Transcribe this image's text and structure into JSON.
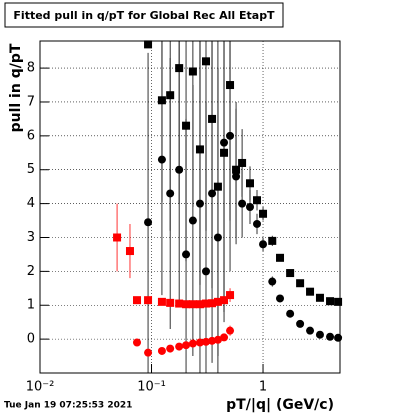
{
  "chart_data": {
    "type": "scatter",
    "title": "Fitted pull in q/pT for Global Rec All EtapT",
    "x_label": "pT/|q| (GeV/c)",
    "y_label": "pull in q/pT",
    "footer": "Tue Jan 19 07:25:53 2021",
    "log_x": true,
    "grid": true,
    "xlim": [
      0.01,
      4.9
    ],
    "ylim": [
      -1,
      8.8
    ],
    "xticks": [
      {
        "value": 0.01,
        "label": "10⁻²"
      },
      {
        "value": 0.1,
        "label": "10⁻¹"
      },
      1
    ],
    "yticks": [
      0,
      1,
      2,
      3,
      4,
      5,
      6,
      7,
      8
    ],
    "series": [
      {
        "color": "#000000",
        "marker": "square",
        "x": [
          0.0931,
          0.124,
          0.147,
          0.177,
          0.204,
          0.235,
          0.272,
          0.308,
          0.349,
          0.394,
          0.447,
          0.506,
          0.573,
          0.649,
          0.764,
          0.883,
          1.0,
          1.21,
          1.42,
          1.75,
          2.15,
          2.64,
          3.24,
          3.99,
          4.71
        ],
        "values": [
          8.7,
          7.05,
          7.2,
          8.0,
          6.3,
          7.9,
          5.6,
          8.2,
          6.5,
          4.5,
          5.5,
          7.5,
          5.0,
          5.2,
          4.6,
          4.1,
          3.7,
          2.9,
          2.4,
          1.95,
          1.65,
          1.4,
          1.22,
          1.12,
          1.1
        ],
        "errors": [
          0,
          3,
          4,
          4,
          4,
          4,
          4,
          5,
          5,
          5,
          5,
          4,
          2,
          1,
          0.5,
          0.3,
          0.2,
          0.15,
          0.1,
          0.08,
          0.06,
          0.05,
          0.05,
          0.05,
          0.05
        ]
      },
      {
        "color": "#000000",
        "marker": "circle",
        "x": [
          0.0931,
          0.124,
          0.147,
          0.177,
          0.204,
          0.235,
          0.272,
          0.308,
          0.349,
          0.394,
          0.447,
          0.506,
          0.573,
          0.649,
          0.764,
          0.883,
          1.0,
          1.21,
          1.42,
          1.75,
          2.15,
          2.64,
          3.24,
          3.99,
          4.71
        ],
        "values": [
          3.45,
          5.3,
          4.3,
          5.0,
          2.5,
          3.5,
          4.0,
          2.0,
          4.3,
          3.0,
          5.8,
          6.0,
          4.8,
          4.0,
          3.9,
          3.4,
          2.8,
          1.7,
          1.2,
          0.75,
          0.45,
          0.25,
          0.13,
          0.07,
          0.04
        ],
        "errors": [
          5,
          4,
          4,
          4,
          4,
          4,
          5,
          5,
          5,
          5,
          5,
          4,
          2,
          1,
          0.5,
          0.3,
          0.2,
          0.15,
          0.1,
          0.08,
          0.06,
          0.05,
          0.05,
          0.05,
          0.05
        ]
      },
      {
        "color": "#ff0000",
        "marker": "square",
        "x": [
          0.0491,
          0.0641,
          0.0741,
          0.0931,
          0.124,
          0.147,
          0.177,
          0.204,
          0.235,
          0.272,
          0.308,
          0.349,
          0.394,
          0.447,
          0.506
        ],
        "values": [
          3.0,
          2.6,
          1.15,
          1.15,
          1.1,
          1.07,
          1.05,
          1.03,
          1.03,
          1.03,
          1.05,
          1.06,
          1.1,
          1.15,
          1.3
        ],
        "errors": [
          1,
          0.8,
          0.1,
          0.1,
          0.08,
          0.08,
          0.08,
          0.08,
          0.08,
          0.1,
          0.1,
          0.1,
          0.1,
          0.1,
          0.2
        ]
      },
      {
        "color": "#ff0000",
        "marker": "circle",
        "x": [
          0.0741,
          0.0931,
          0.124,
          0.147,
          0.177,
          0.204,
          0.235,
          0.272,
          0.308,
          0.349,
          0.394,
          0.447,
          0.506
        ],
        "values": [
          -0.1,
          -0.4,
          -0.35,
          -0.28,
          -0.22,
          -0.18,
          -0.13,
          -0.1,
          -0.08,
          -0.05,
          -0.02,
          0.05,
          0.25
        ],
        "errors": [
          0.08,
          0.05,
          0.05,
          0.05,
          0.05,
          0.05,
          0.05,
          0.05,
          0.05,
          0.05,
          0.08,
          0.1,
          0.15
        ]
      }
    ]
  }
}
